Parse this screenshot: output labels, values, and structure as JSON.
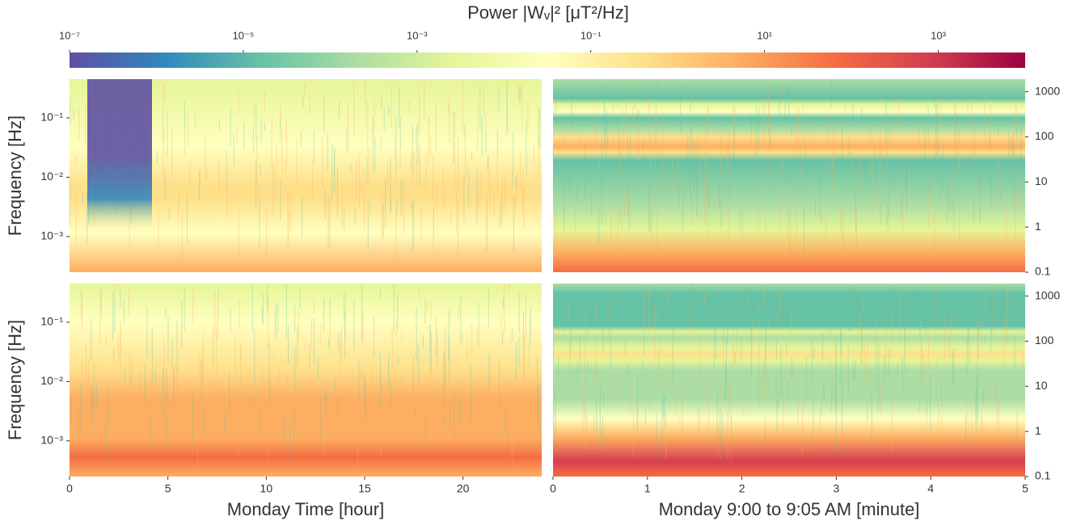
{
  "chart_data": {
    "type": "heatmap",
    "colorbar": {
      "title": "Power |Wᵥ|² [μT²/Hz]",
      "lim": [
        1e-07,
        10000
      ],
      "log": true,
      "ticks": [
        {
          "value": 1e-07,
          "label": "10⁻⁷"
        },
        {
          "value": 1e-05,
          "label": "10⁻⁵"
        },
        {
          "value": 0.001,
          "label": "10⁻³"
        },
        {
          "value": 0.1,
          "label": "10⁻¹"
        },
        {
          "value": 10,
          "label": "10¹"
        },
        {
          "value": 1000,
          "label": "10³"
        }
      ],
      "colors": [
        "#5e4fa2",
        "#3288bd",
        "#66c2a5",
        "#abdda4",
        "#e6f598",
        "#ffffbf",
        "#fee08b",
        "#fdae61",
        "#f46d43",
        "#d53e4f",
        "#9e0142"
      ]
    },
    "panels": [
      {
        "ylabel": "Frequency [Hz]",
        "xlim": [
          0,
          24
        ],
        "ylim": [
          0.00025,
          0.45
        ],
        "log_y": true,
        "yticks": [
          {
            "value": 0.1,
            "label": "10⁻¹"
          },
          {
            "value": 0.01,
            "label": "10⁻²"
          },
          {
            "value": 0.001,
            "label": "10⁻³"
          }
        ]
      },
      {
        "xlim": [
          0,
          5
        ],
        "ylim": [
          0.1,
          1900
        ],
        "log_y": true,
        "yticks": [
          1000,
          100,
          10,
          1,
          0.1
        ]
      },
      {
        "ylabel": "Frequency [Hz]",
        "xlabel": "Monday Time [hour]",
        "xlim": [
          0,
          24
        ],
        "ylim": [
          0.00025,
          0.45
        ],
        "log_y": true,
        "yticks": [
          {
            "value": 0.1,
            "label": "10⁻¹"
          },
          {
            "value": 0.01,
            "label": "10⁻²"
          },
          {
            "value": 0.001,
            "label": "10⁻³"
          }
        ],
        "xticks": [
          0,
          5,
          10,
          15,
          20
        ]
      },
      {
        "xlabel": "Monday 9:00 to 9:05 AM [minute]",
        "xlim": [
          0,
          5
        ],
        "ylim": [
          0.1,
          1900
        ],
        "log_y": true,
        "yticks": [
          1000,
          100,
          10,
          1,
          0.1
        ],
        "xticks": [
          0,
          1,
          2,
          3,
          4,
          5
        ]
      }
    ]
  }
}
